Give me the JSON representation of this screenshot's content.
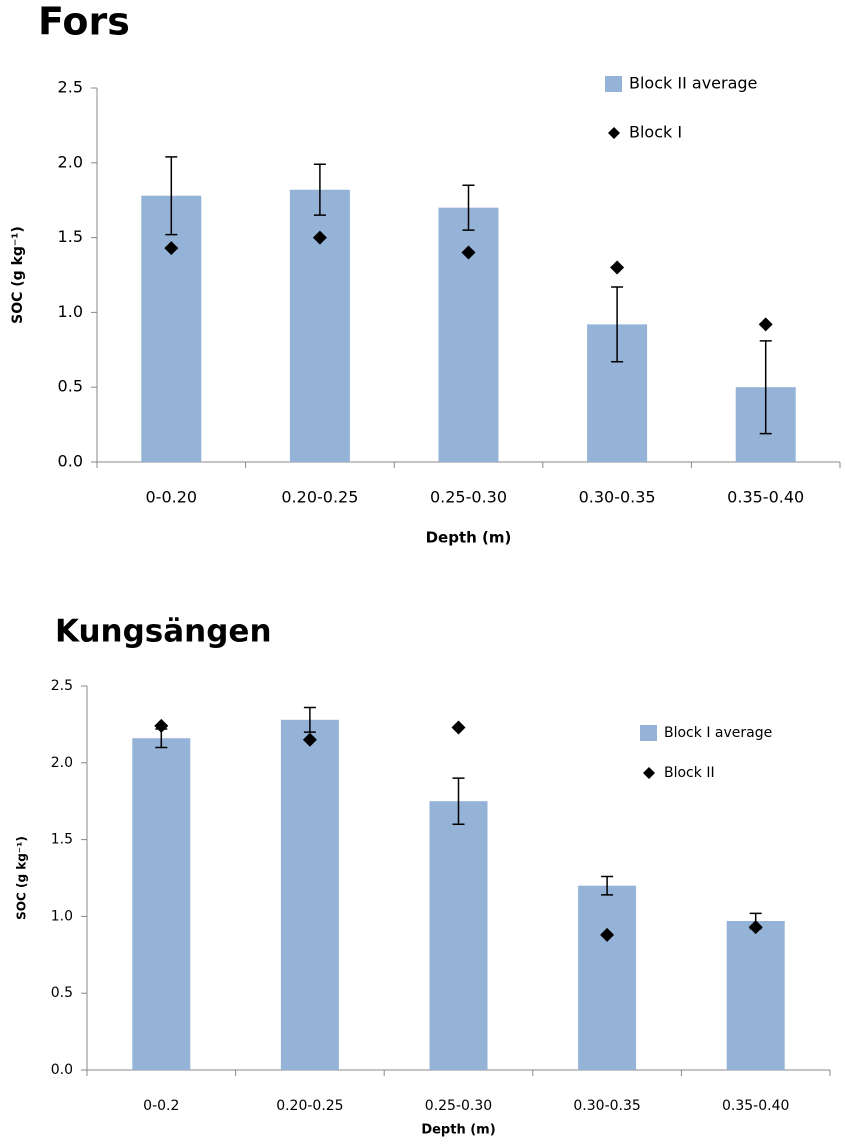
{
  "chart_data": [
    {
      "type": "bar",
      "title": "Fors",
      "x_label": "Depth (m)",
      "y_label": "SOC (g kg⁻¹)",
      "categories": [
        "0-0.20",
        "0.20-0.25",
        "0.25-0.30",
        "0.30-0.35",
        "0.35-0.40"
      ],
      "series": [
        {
          "name": "Block II average",
          "color": "#95b3d7",
          "values": [
            1.78,
            1.82,
            1.7,
            0.92,
            0.5
          ],
          "errors": [
            0.26,
            0.17,
            0.15,
            0.25,
            0.31
          ]
        },
        {
          "name": "Block I",
          "type": "scatter",
          "color": "#000000",
          "values": [
            1.43,
            1.5,
            1.4,
            1.3,
            0.92
          ]
        }
      ],
      "ylim": [
        0,
        2.5
      ],
      "yticks": [
        {
          "value": 0,
          "label": "0.0"
        },
        {
          "value": 0.5,
          "label": "0.5"
        },
        {
          "value": 1,
          "label": "1.0"
        },
        {
          "value": 1.5,
          "label": "1.5"
        },
        {
          "value": 2,
          "label": "2.0"
        },
        {
          "value": 2.5,
          "label": "2.5"
        }
      ],
      "legend": "upper right"
    },
    {
      "type": "bar",
      "title": "Kungsängen",
      "x_label": "Depth (m)",
      "y_label": "SOC (g kg⁻¹)",
      "categories": [
        "0-0.2",
        "0.20-0.25",
        "0.25-0.30",
        "0.30-0.35",
        "0.35-0.40"
      ],
      "series": [
        {
          "name": "Block I average",
          "color": "#95b3d7",
          "values": [
            2.16,
            2.28,
            1.75,
            1.2,
            0.97
          ],
          "errors": [
            0.06,
            0.08,
            0.15,
            0.06,
            0.05
          ]
        },
        {
          "name": "Block II",
          "type": "scatter",
          "color": "#000000",
          "values": [
            2.24,
            2.15,
            2.23,
            0.88,
            0.93
          ]
        }
      ],
      "ylim": [
        0,
        2.5
      ],
      "yticks": [
        {
          "value": 0,
          "label": "0.0"
        },
        {
          "value": 0.5,
          "label": "0.5"
        },
        {
          "value": 1,
          "label": "1.0"
        },
        {
          "value": 1.5,
          "label": "1.5"
        },
        {
          "value": 2,
          "label": "2.0"
        },
        {
          "value": 2.5,
          "label": "2.5"
        }
      ],
      "legend": "upper right"
    }
  ]
}
